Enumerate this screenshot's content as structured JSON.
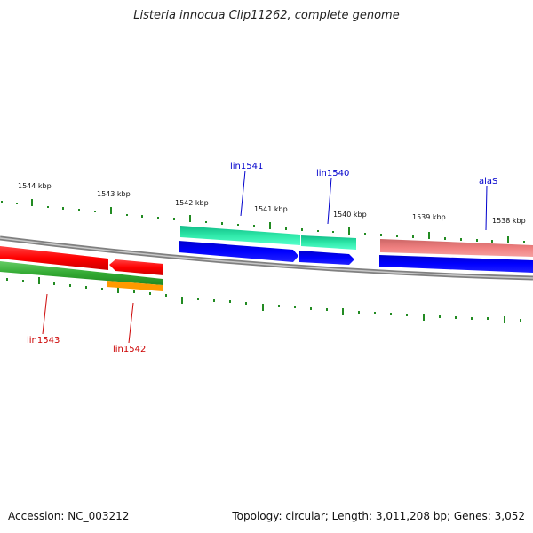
{
  "title": "Listeria innocua Clip11262, complete genome",
  "footer": {
    "accession": "Accession: NC_003212",
    "topology": "Topology: circular; Length: 3,011,208 bp; Genes: 3,052"
  },
  "scale_labels": [
    "1544 kbp",
    "1543 kbp",
    "1542 kbp",
    "1541 kbp",
    "1540 kbp",
    "1539 kbp",
    "1538 kbp"
  ],
  "genes": [
    {
      "name": "lin1541",
      "strand": "forward",
      "color": "#0000cc"
    },
    {
      "name": "lin1540",
      "strand": "forward",
      "color": "#0000cc"
    },
    {
      "name": "alaS",
      "strand": "forward",
      "color": "#0000cc"
    },
    {
      "name": "lin1543",
      "strand": "reverse",
      "color": "#cc0000"
    },
    {
      "name": "lin1542",
      "strand": "reverse",
      "color": "#cc0000"
    }
  ],
  "colors": {
    "backbone": "#808080",
    "outer_tick": "#228b22",
    "cds_forward": "#0000ff",
    "cds_reverse": "#ff0000",
    "feature_teal": "#2ee8a8",
    "feature_pink": "#f08080",
    "feature_green": "#33aa33",
    "feature_orange": "#ff9900"
  }
}
